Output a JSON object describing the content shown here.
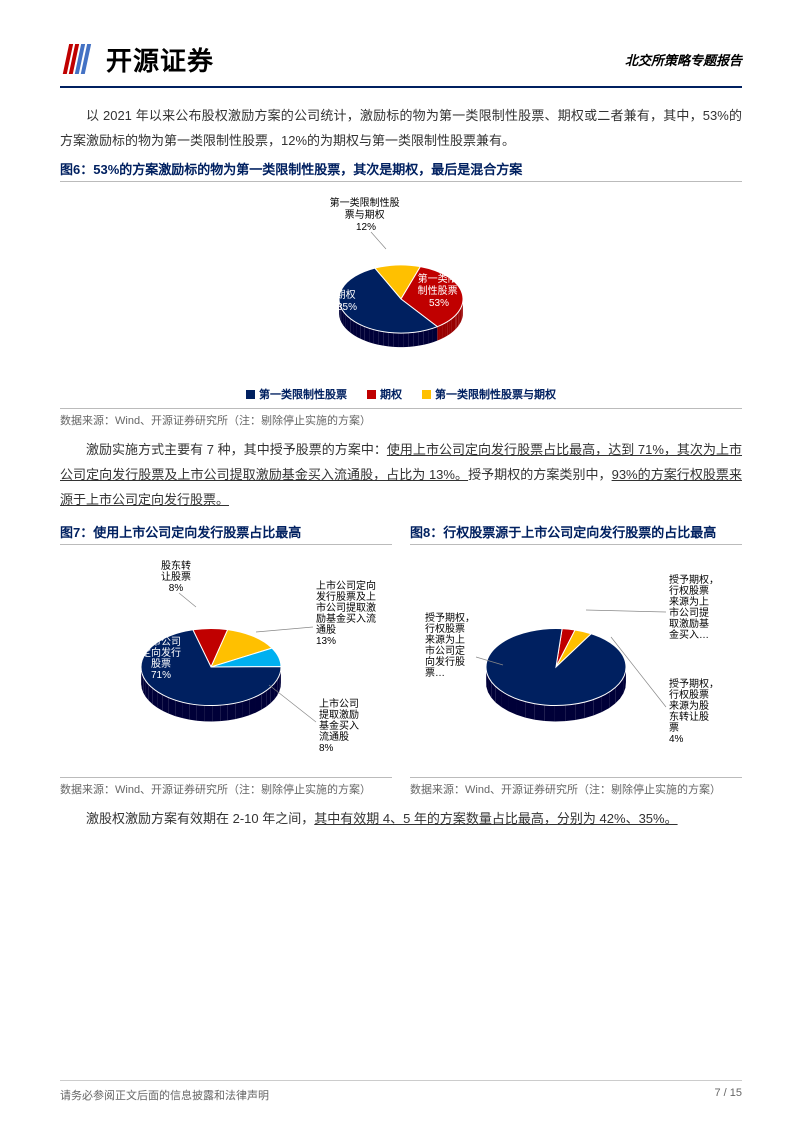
{
  "header": {
    "company_name": "开源证券",
    "doc_type": "北交所策略专题报告",
    "logo_colors": {
      "red": "#c00000",
      "blue": "#4472c4"
    }
  },
  "para1": "以 2021 年以来公布股权激励方案的公司统计，激励标的物为第一类限制性股票、期权或二者兼有，其中，53%的方案激励标的物为第一类限制性股票，12%的为期权与第一类限制性股票兼有。",
  "fig6": {
    "title": "图6：53%的方案激励标的物为第一类限制性股票，其次是期权，最后是混合方案",
    "type": "pie",
    "slices": [
      {
        "label": "第一类限制性股票与期权",
        "short": "第一类限制性股\n票与期权",
        "value": 12,
        "pct": "12%",
        "color": "#ffc000"
      },
      {
        "label": "期权",
        "short": "期权",
        "value": 35,
        "pct": "35%",
        "color": "#c00000"
      },
      {
        "label": "第一类限制性股票",
        "short": "第一类限\n制性股票",
        "value": 53,
        "pct": "53%",
        "color": "#002060"
      }
    ],
    "legend": [
      {
        "label": "第一类限制性股票",
        "color": "#002060"
      },
      {
        "label": "期权",
        "color": "#c00000"
      },
      {
        "label": "第一类限制性股票与期权",
        "color": "#ffc000"
      }
    ],
    "source": "数据来源：Wind、开源证券研究所（注：剔除停止实施的方案）",
    "background_color": "#ffffff"
  },
  "para2_pre": "激励实施方式主要有 7 种，其中授予股票的方案中：",
  "para2_u1": "使用上市公司定向发行股票占比最高，达到 71%，其次为上市公司定向发行股票及上市公司提取激励基金买入流通股，占比为 13%。",
  "para2_mid": "授予期权的方案类别中，",
  "para2_u2": "93%的方案行权股票来源于上市公司定向发行股票。",
  "fig7": {
    "title": "图7：使用上市公司定向发行股票占比最高",
    "type": "pie",
    "slices": [
      {
        "label": "股东转让股票",
        "value": 8,
        "pct": "8%",
        "color": "#c00000"
      },
      {
        "label": "上市公司定向发行股票及上市公司提取激励基金买入流通股",
        "value": 13,
        "pct": "13%",
        "color": "#ffc000"
      },
      {
        "label": "上市公司提取激励基金买入流通股",
        "value": 8,
        "pct": "8%",
        "color": "#00b0f0"
      },
      {
        "label": "上市公司定向发行股票",
        "value": 71,
        "pct": "71%",
        "color": "#002060"
      }
    ],
    "labels_layout": {
      "l1": "股东转\n让股票\n8%",
      "l2": "上市公司定向\n发行股票及上\n市公司提取激\n励基金买入流\n通股\n13%",
      "l3": "上市公司\n提取激励\n基金买入\n流通股\n8%",
      "l4": "上市公司\n定向发行\n股票\n71%"
    },
    "source": "数据来源：Wind、开源证券研究所（注：剔除停止实施的方案）"
  },
  "fig8": {
    "title": "图8：行权股票源于上市公司定向发行股票的占比最高",
    "type": "pie",
    "slices": [
      {
        "label": "授予期权，行权股票来源为上市公司提取激励基金买入…",
        "value": 3,
        "pct": "",
        "color": "#c00000"
      },
      {
        "label": "授予期权，行权股票来源为股东转让股票",
        "value": 4,
        "pct": "4%",
        "color": "#ffc000"
      },
      {
        "label": "授予期权，行权股票来源为上市公司定向发行股票…",
        "value": 93,
        "pct": "",
        "color": "#002060"
      }
    ],
    "labels_layout": {
      "l1": "授予期权，\n行权股票\n来源为上\n市公司提\n取激励基\n金买入…",
      "l2": "授予期权，\n行权股票\n来源为股\n东转让股\n票\n4%",
      "l3": "授予期权，\n行权股票\n来源为上\n市公司定\n向发行股\n票…"
    },
    "source": "数据来源：Wind、开源证券研究所（注：剔除停止实施的方案）"
  },
  "para3_pre": "激股权激励方案有效期在 2-10 年之间，",
  "para3_u": "其中有效期 4、5 年的方案数量占比最高，分别为 42%、35%。",
  "footer": {
    "disclaimer": "请务必参阅正文后面的信息披露和法律声明",
    "page": "7 / 15"
  }
}
